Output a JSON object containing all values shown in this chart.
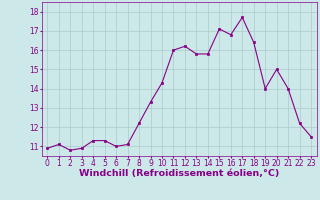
{
  "x": [
    0,
    1,
    2,
    3,
    4,
    5,
    6,
    7,
    8,
    9,
    10,
    11,
    12,
    13,
    14,
    15,
    16,
    17,
    18,
    19,
    20,
    21,
    22,
    23
  ],
  "y": [
    10.9,
    11.1,
    10.8,
    10.9,
    11.3,
    11.3,
    11.0,
    11.1,
    12.2,
    13.3,
    14.3,
    16.0,
    16.2,
    15.8,
    15.8,
    17.1,
    16.8,
    17.7,
    16.4,
    14.0,
    15.0,
    14.0,
    12.2,
    11.5
  ],
  "ylim": [
    10.5,
    18.5
  ],
  "yticks": [
    11,
    12,
    13,
    14,
    15,
    16,
    17,
    18
  ],
  "xticks": [
    0,
    1,
    2,
    3,
    4,
    5,
    6,
    7,
    8,
    9,
    10,
    11,
    12,
    13,
    14,
    15,
    16,
    17,
    18,
    19,
    20,
    21,
    22,
    23
  ],
  "xlabel": "Windchill (Refroidissement éolien,°C)",
  "line_color": "#880088",
  "marker": "s",
  "marker_size": 2.0,
  "bg_color": "#cce8e8",
  "grid_color": "#aacccc",
  "tick_fontsize": 5.5,
  "xlabel_fontsize": 6.8,
  "linewidth": 0.8
}
